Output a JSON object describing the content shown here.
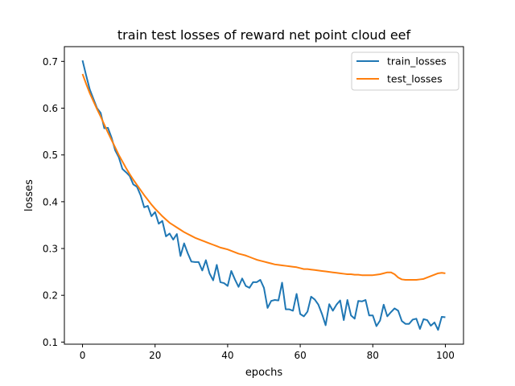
{
  "chart_data": {
    "type": "line",
    "title": "train test losses of reward net point cloud eef",
    "xlabel": "epochs",
    "ylabel": "losses",
    "xlim": [
      -5,
      105
    ],
    "ylim": [
      0.0955,
      0.7315
    ],
    "x_ticks": [
      "0",
      "20",
      "40",
      "60",
      "80",
      "100"
    ],
    "y_ticks": [
      "0.1",
      "0.2",
      "0.3",
      "0.4",
      "0.5",
      "0.6",
      "0.7"
    ],
    "grid": false,
    "legend_position": "top-right",
    "series": [
      {
        "name": "train_losses",
        "color": "#1f77b4",
        "values": [
          0.702,
          0.67,
          0.64,
          0.62,
          0.6,
          0.59,
          0.557,
          0.558,
          0.537,
          0.51,
          0.495,
          0.47,
          0.463,
          0.455,
          0.437,
          0.432,
          0.414,
          0.388,
          0.391,
          0.369,
          0.378,
          0.353,
          0.359,
          0.326,
          0.332,
          0.319,
          0.331,
          0.284,
          0.311,
          0.29,
          0.272,
          0.271,
          0.271,
          0.253,
          0.275,
          0.247,
          0.232,
          0.265,
          0.228,
          0.226,
          0.22,
          0.252,
          0.234,
          0.218,
          0.236,
          0.22,
          0.216,
          0.228,
          0.228,
          0.233,
          0.216,
          0.173,
          0.188,
          0.19,
          0.189,
          0.227,
          0.17,
          0.17,
          0.167,
          0.203,
          0.16,
          0.155,
          0.165,
          0.197,
          0.191,
          0.18,
          0.16,
          0.136,
          0.181,
          0.167,
          0.18,
          0.189,
          0.147,
          0.19,
          0.157,
          0.15,
          0.188,
          0.187,
          0.19,
          0.157,
          0.157,
          0.134,
          0.146,
          0.18,
          0.155,
          0.164,
          0.172,
          0.167,
          0.145,
          0.139,
          0.139,
          0.148,
          0.15,
          0.128,
          0.149,
          0.147,
          0.135,
          0.142,
          0.126,
          0.154,
          0.153
        ]
      },
      {
        "name": "test_losses",
        "color": "#ff7f0e",
        "values": [
          0.673,
          0.652,
          0.632,
          0.615,
          0.598,
          0.582,
          0.565,
          0.548,
          0.532,
          0.516,
          0.5,
          0.486,
          0.472,
          0.459,
          0.447,
          0.436,
          0.425,
          0.414,
          0.404,
          0.394,
          0.385,
          0.377,
          0.369,
          0.362,
          0.355,
          0.35,
          0.345,
          0.34,
          0.335,
          0.331,
          0.327,
          0.323,
          0.32,
          0.317,
          0.314,
          0.311,
          0.308,
          0.305,
          0.302,
          0.3,
          0.298,
          0.295,
          0.292,
          0.289,
          0.287,
          0.285,
          0.282,
          0.279,
          0.276,
          0.274,
          0.272,
          0.27,
          0.268,
          0.266,
          0.265,
          0.264,
          0.263,
          0.262,
          0.261,
          0.26,
          0.258,
          0.256,
          0.256,
          0.255,
          0.254,
          0.253,
          0.252,
          0.251,
          0.25,
          0.249,
          0.248,
          0.247,
          0.246,
          0.245,
          0.245,
          0.244,
          0.244,
          0.243,
          0.243,
          0.243,
          0.243,
          0.244,
          0.245,
          0.247,
          0.249,
          0.249,
          0.245,
          0.238,
          0.234,
          0.233,
          0.233,
          0.233,
          0.233,
          0.234,
          0.235,
          0.238,
          0.241,
          0.244,
          0.247,
          0.248,
          0.247
        ]
      }
    ]
  }
}
